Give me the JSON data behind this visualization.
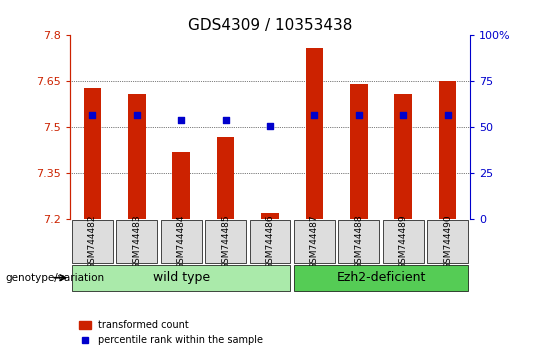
{
  "title": "GDS4309 / 10353438",
  "samples": [
    "GSM744482",
    "GSM744483",
    "GSM744484",
    "GSM744485",
    "GSM744486",
    "GSM744487",
    "GSM744488",
    "GSM744489",
    "GSM744490"
  ],
  "transformed_counts": [
    7.63,
    7.61,
    7.42,
    7.47,
    7.22,
    7.76,
    7.64,
    7.61,
    7.65
  ],
  "percentile_ranks": [
    57,
    57,
    54,
    54,
    51,
    57,
    57,
    57,
    57
  ],
  "ylim_left": [
    7.2,
    7.8
  ],
  "ylim_right": [
    0,
    100
  ],
  "yticks_left": [
    7.2,
    7.35,
    7.5,
    7.65,
    7.8
  ],
  "yticks_right": [
    0,
    25,
    50,
    75,
    100
  ],
  "bar_color": "#cc2200",
  "dot_color": "#0000cc",
  "n_wild_type": 5,
  "n_ezh2": 4,
  "wild_type_label": "wild type",
  "ezh2_label": "Ezh2-deficient",
  "genotype_label": "genotype/variation",
  "legend_bar_label": "transformed count",
  "legend_dot_label": "percentile rank within the sample",
  "bar_bottom": 7.2,
  "right_axis_color": "#0000cc",
  "left_axis_color": "#cc2200",
  "background_color": "#ffffff",
  "plot_bg_color": "#ffffff",
  "wild_type_bg": "#aaeaaa",
  "ezh2_bg": "#55cc55",
  "sample_bg": "#dddddd"
}
